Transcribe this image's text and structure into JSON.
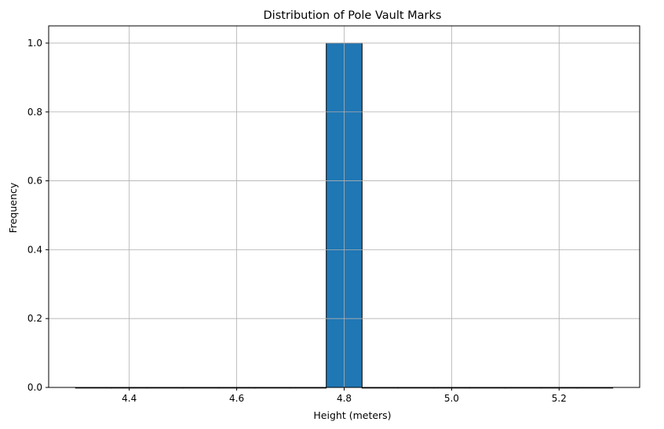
{
  "chart_data": {
    "type": "bar",
    "title": "Distribution of Pole Vault Marks",
    "xlabel": "Height (meters)",
    "ylabel": "Frequency",
    "xlim": [
      4.25,
      5.35
    ],
    "ylim": [
      0.0,
      1.05
    ],
    "x_ticks": [
      "4.4",
      "4.6",
      "4.8",
      "5.0",
      "5.2"
    ],
    "y_ticks": [
      "0.0",
      "0.2",
      "0.4",
      "0.6",
      "0.8",
      "1.0"
    ],
    "grid": true,
    "bins": [
      {
        "start": 4.3,
        "end": 4.3667,
        "count": 0
      },
      {
        "start": 4.3667,
        "end": 4.4333,
        "count": 0
      },
      {
        "start": 4.4333,
        "end": 4.5,
        "count": 0
      },
      {
        "start": 4.5,
        "end": 4.5667,
        "count": 0
      },
      {
        "start": 4.5667,
        "end": 4.6333,
        "count": 0
      },
      {
        "start": 4.6333,
        "end": 4.7,
        "count": 0
      },
      {
        "start": 4.7,
        "end": 4.7667,
        "count": 0
      },
      {
        "start": 4.7667,
        "end": 4.8333,
        "count": 1
      },
      {
        "start": 4.8333,
        "end": 4.9,
        "count": 0
      },
      {
        "start": 4.9,
        "end": 4.9667,
        "count": 0
      },
      {
        "start": 4.9667,
        "end": 5.0333,
        "count": 0
      },
      {
        "start": 5.0333,
        "end": 5.1,
        "count": 0
      },
      {
        "start": 5.1,
        "end": 5.1667,
        "count": 0
      },
      {
        "start": 5.1667,
        "end": 5.2333,
        "count": 0
      },
      {
        "start": 5.2333,
        "end": 5.3,
        "count": 0
      }
    ],
    "colors": {
      "bar": "#1f77b4",
      "edge": "#000000",
      "grid": "#b0b0b0"
    }
  }
}
